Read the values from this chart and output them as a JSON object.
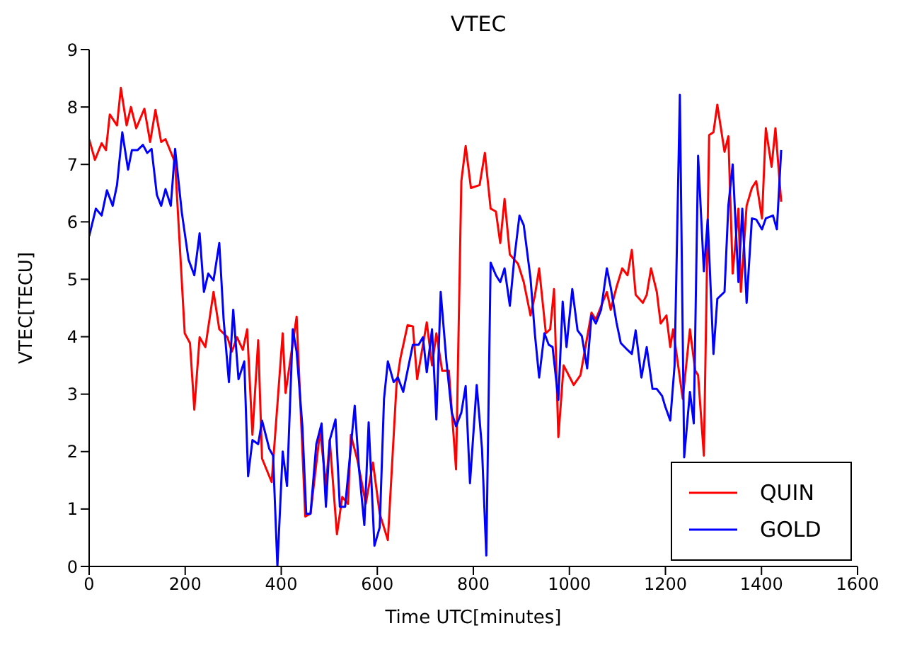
{
  "chart_data": {
    "type": "line",
    "title": "VTEC",
    "xlabel": "Time UTC[minutes]",
    "ylabel": "VTEC[TECU]",
    "xlim": [
      0,
      1600
    ],
    "xticks": [
      0,
      200,
      400,
      600,
      800,
      1000,
      1200,
      1400,
      1600
    ],
    "ylim": [
      0,
      9
    ],
    "yticks": [
      0,
      1,
      2,
      3,
      4,
      5,
      6,
      7,
      8,
      9
    ],
    "grid": false,
    "legend": "bottom right",
    "series": [
      {
        "name": "QUIN",
        "color": "#ff0000",
        "x": [
          0,
          12,
          26,
          35,
          43,
          58,
          66,
          78,
          87,
          98,
          115,
          127,
          138,
          150,
          159,
          179,
          199,
          210,
          219,
          230,
          242,
          259,
          271,
          288,
          297,
          308,
          320,
          329,
          340,
          352,
          360,
          380,
          403,
          409,
          432,
          450,
          461,
          481,
          493,
          501,
          516,
          527,
          539,
          545,
          559,
          576,
          591,
          605,
          622,
          640,
          648,
          663,
          674,
          683,
          703,
          714,
          723,
          735,
          749,
          764,
          775,
          784,
          795,
          813,
          824,
          836,
          847,
          856,
          865,
          876,
          893,
          905,
          919,
          928,
          937,
          951,
          960,
          968,
          977,
          988,
          1009,
          1023,
          1037,
          1046,
          1055,
          1078,
          1086,
          1098,
          1110,
          1121,
          1130,
          1138,
          1153,
          1161,
          1170,
          1182,
          1190,
          1202,
          1210,
          1216,
          1236,
          1251,
          1262,
          1268,
          1280,
          1291,
          1300,
          1308,
          1323,
          1331,
          1340,
          1352,
          1357,
          1369,
          1380,
          1389,
          1401,
          1409,
          1421,
          1429,
          1441
        ],
        "values": [
          7.44,
          7.08,
          7.37,
          7.25,
          7.87,
          7.68,
          8.33,
          7.68,
          8.0,
          7.63,
          7.97,
          7.39,
          7.95,
          7.39,
          7.44,
          7.03,
          4.06,
          3.89,
          2.73,
          3.99,
          3.82,
          4.78,
          4.13,
          3.99,
          3.74,
          3.99,
          3.77,
          4.13,
          2.29,
          3.94,
          1.88,
          1.47,
          4.06,
          3.02,
          4.35,
          0.87,
          0.92,
          2.37,
          1.4,
          2.2,
          0.56,
          1.21,
          1.09,
          2.29,
          1.84,
          1.09,
          1.81,
          0.92,
          0.46,
          3.16,
          3.62,
          4.2,
          4.18,
          3.26,
          4.25,
          3.5,
          4.06,
          3.41,
          3.41,
          1.69,
          6.71,
          7.32,
          6.59,
          6.64,
          7.2,
          6.23,
          6.18,
          5.63,
          6.4,
          5.43,
          5.27,
          4.95,
          4.37,
          4.71,
          5.19,
          4.06,
          4.13,
          4.83,
          2.25,
          3.5,
          3.16,
          3.33,
          3.99,
          4.42,
          4.3,
          4.78,
          4.47,
          4.86,
          5.19,
          5.07,
          5.51,
          4.73,
          4.59,
          4.73,
          5.19,
          4.78,
          4.23,
          4.37,
          3.82,
          4.13,
          2.92,
          4.13,
          3.41,
          3.33,
          1.93,
          7.51,
          7.56,
          8.04,
          7.22,
          7.49,
          5.1,
          6.23,
          4.78,
          6.28,
          6.59,
          6.71,
          6.06,
          7.63,
          6.96,
          7.63,
          6.35
        ]
      },
      {
        "name": "GOLD",
        "color": "#0000ff",
        "x": [
          0,
          14,
          26,
          37,
          49,
          58,
          69,
          81,
          89,
          101,
          112,
          121,
          130,
          141,
          150,
          159,
          170,
          179,
          193,
          207,
          219,
          230,
          239,
          248,
          259,
          271,
          280,
          291,
          300,
          311,
          323,
          331,
          340,
          352,
          360,
          375,
          383,
          392,
          403,
          412,
          424,
          432,
          444,
          452,
          461,
          473,
          484,
          493,
          501,
          513,
          522,
          533,
          553,
          562,
          573,
          582,
          594,
          605,
          614,
          622,
          634,
          643,
          654,
          674,
          686,
          695,
          703,
          714,
          723,
          732,
          744,
          755,
          764,
          775,
          784,
          793,
          807,
          818,
          827,
          836,
          847,
          856,
          865,
          876,
          885,
          896,
          905,
          919,
          928,
          937,
          948,
          957,
          965,
          977,
          986,
          994,
          1006,
          1017,
          1026,
          1037,
          1046,
          1055,
          1066,
          1078,
          1086,
          1098,
          1107,
          1121,
          1130,
          1138,
          1150,
          1161,
          1173,
          1182,
          1193,
          1199,
          1210,
          1219,
          1230,
          1239,
          1251,
          1259,
          1268,
          1280,
          1288,
          1300,
          1308,
          1323,
          1331,
          1340,
          1352,
          1360,
          1369,
          1380,
          1389,
          1401,
          1409,
          1424,
          1432,
          1441
        ],
        "values": [
          5.75,
          6.23,
          6.11,
          6.55,
          6.28,
          6.64,
          7.56,
          6.91,
          7.25,
          7.25,
          7.34,
          7.2,
          7.27,
          6.47,
          6.28,
          6.57,
          6.28,
          7.27,
          6.16,
          5.34,
          5.07,
          5.8,
          4.78,
          5.1,
          4.98,
          5.63,
          4.3,
          3.21,
          4.47,
          3.26,
          3.57,
          1.57,
          2.2,
          2.13,
          2.54,
          2.05,
          1.93,
          0,
          2.0,
          1.4,
          4.13,
          3.74,
          2.44,
          0.92,
          0.92,
          2.13,
          2.49,
          1.04,
          2.2,
          2.56,
          1.04,
          1.04,
          2.8,
          1.69,
          0.72,
          2.51,
          0.36,
          0.68,
          2.92,
          3.57,
          3.21,
          3.29,
          3.04,
          3.86,
          3.86,
          3.99,
          3.38,
          4.13,
          2.56,
          4.78,
          3.57,
          2.68,
          2.44,
          2.68,
          3.14,
          1.45,
          3.16,
          2.05,
          0.19,
          5.29,
          5.07,
          4.95,
          5.19,
          4.54,
          5.34,
          6.11,
          5.94,
          5.02,
          4.06,
          3.29,
          4.06,
          3.86,
          3.82,
          2.9,
          4.61,
          3.82,
          4.83,
          4.11,
          4.01,
          3.45,
          4.37,
          4.23,
          4.47,
          5.19,
          4.86,
          4.25,
          3.89,
          3.77,
          3.7,
          4.11,
          3.29,
          3.82,
          3.09,
          3.09,
          2.97,
          2.8,
          2.54,
          3.5,
          8.21,
          1.9,
          3.04,
          2.49,
          7.15,
          5.14,
          6.04,
          3.7,
          4.66,
          4.78,
          6.28,
          7.0,
          4.95,
          6.23,
          4.59,
          6.06,
          6.04,
          5.87,
          6.06,
          6.11,
          5.87,
          7.25
        ]
      }
    ]
  }
}
